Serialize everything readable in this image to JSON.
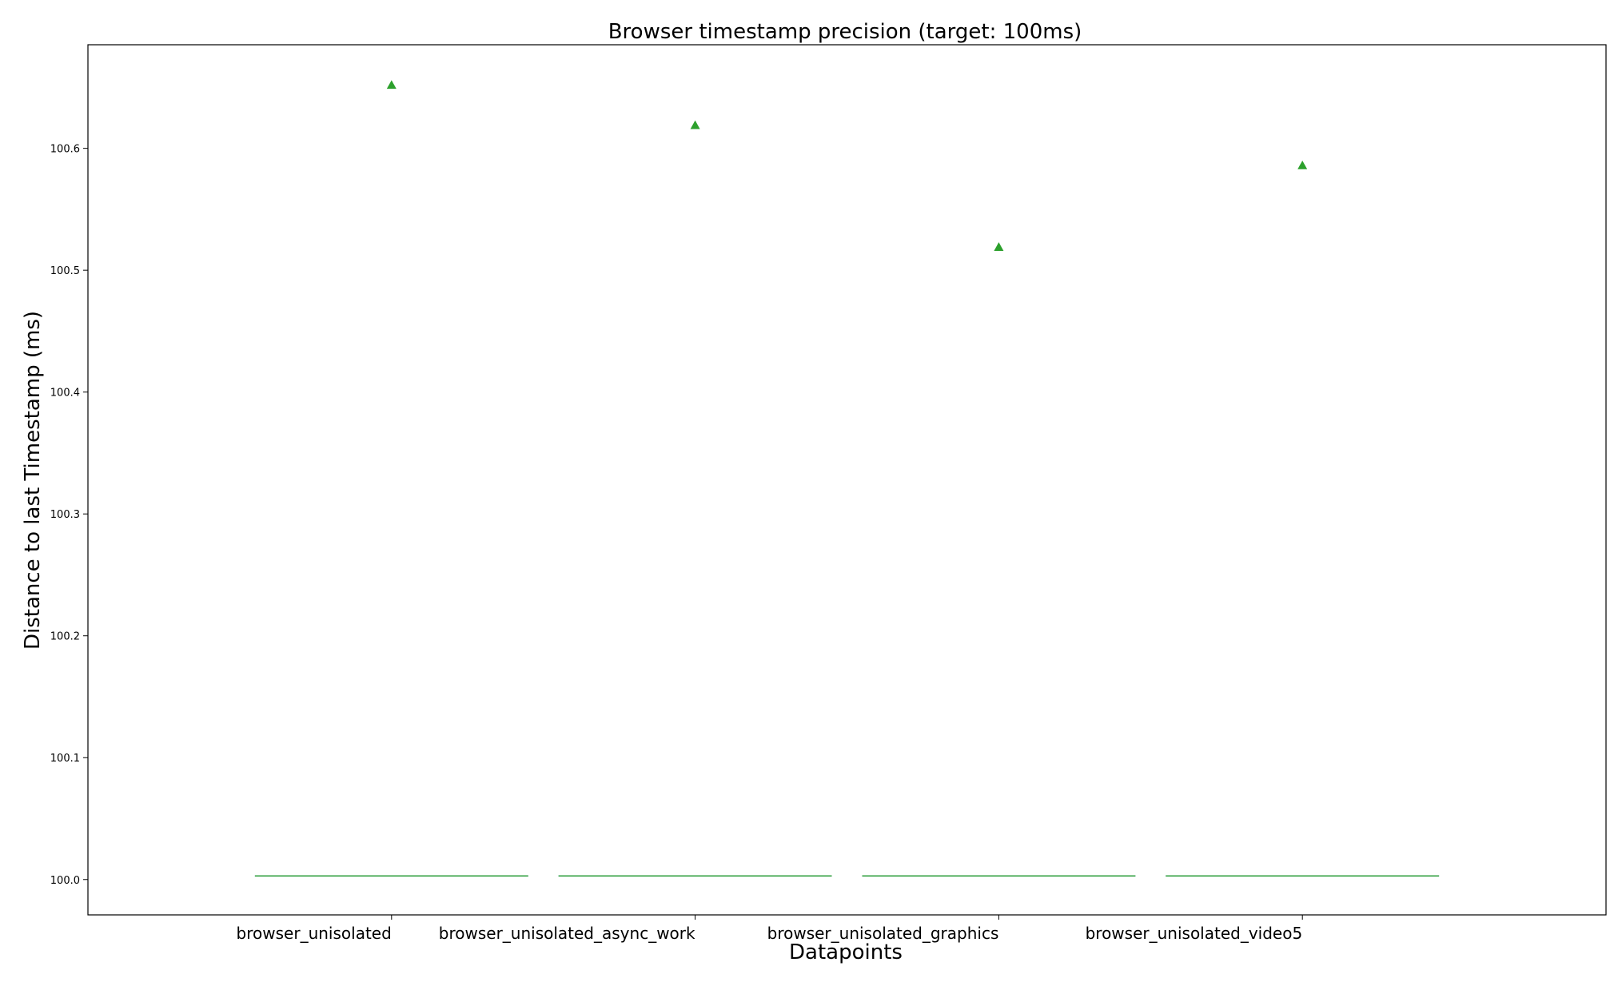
{
  "chart_data": {
    "type": "box",
    "title": "Browser timestamp precision (target: 100ms)",
    "xlabel": "Datapoints",
    "ylabel": "Distance to last Timestamp (ms)",
    "categories": [
      "browser_unisolated",
      "browser_unisolated_async_work",
      "browser_unisolated_graphics",
      "browser_unisolated_video5"
    ],
    "medians": [
      100.003,
      100.003,
      100.003,
      100.003
    ],
    "means": [
      100.652,
      100.619,
      100.519,
      100.586
    ],
    "ylim": [
      99.971,
      100.685
    ],
    "yticks": [
      100.0,
      100.1,
      100.2,
      100.3,
      100.4,
      100.5,
      100.6
    ],
    "ytick_labels": [
      "100.0",
      "100.1",
      "100.2",
      "100.3",
      "100.4",
      "100.5",
      "100.6"
    ],
    "grid": false,
    "colors": {
      "mean_marker": "#2ca02c",
      "median_line": "#2ca02c",
      "box_whisker": "#1f77b4",
      "frame": "#000000"
    }
  }
}
